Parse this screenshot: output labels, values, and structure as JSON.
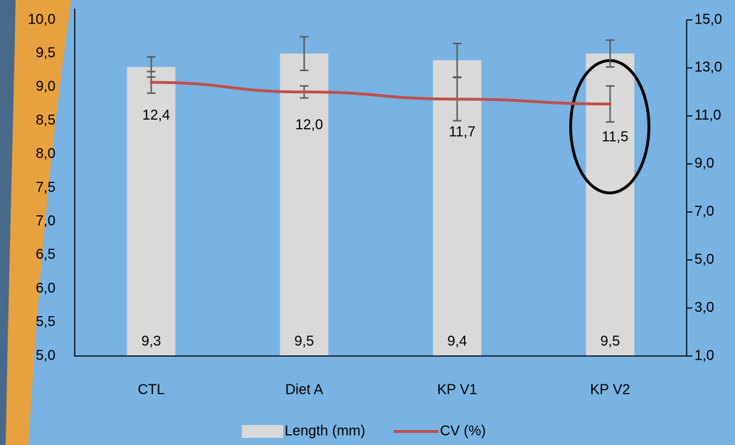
{
  "chart_data": {
    "type": "bar",
    "categories": [
      "CTL",
      "Diet A",
      "KP V1",
      "KP V2"
    ],
    "series": [
      {
        "name": "Length (mm)",
        "type": "bar",
        "color": "#d9d9d9",
        "values": [
          9.3,
          9.5,
          9.4,
          9.5
        ],
        "value_labels": [
          "9,3",
          "9,5",
          "9,4",
          "9,5"
        ],
        "errors": [
          0.15,
          0.25,
          0.25,
          0.2
        ]
      },
      {
        "name": "CV (%)",
        "type": "line",
        "axis": "y2",
        "color": "#c0504d",
        "values": [
          12.4,
          12.0,
          11.7,
          11.5
        ],
        "value_labels": [
          "12,4",
          "12,0",
          "11,7",
          "11,5"
        ],
        "errors": [
          0.45,
          0.25,
          0.9,
          0.75
        ]
      }
    ],
    "ylim": [
      5.0,
      10.0
    ],
    "yticks": [
      {
        "value": 5.0,
        "label": "5,0"
      },
      {
        "value": 5.5,
        "label": "5,5"
      },
      {
        "value": 6.0,
        "label": "6,0"
      },
      {
        "value": 6.5,
        "label": "6,5"
      },
      {
        "value": 7.0,
        "label": "7,0"
      },
      {
        "value": 7.5,
        "label": "7,5"
      },
      {
        "value": 8.0,
        "label": "8,0"
      },
      {
        "value": 8.5,
        "label": "8,5"
      },
      {
        "value": 9.0,
        "label": "9,0"
      },
      {
        "value": 9.5,
        "label": "9,5"
      },
      {
        "value": 10.0,
        "label": "10,0"
      }
    ],
    "y2lim": [
      1.0,
      15.0
    ],
    "y2ticks": [
      {
        "value": 1.0,
        "label": "1,0"
      },
      {
        "value": 3.0,
        "label": "3,0"
      },
      {
        "value": 5.0,
        "label": "5,0"
      },
      {
        "value": 7.0,
        "label": "7,0"
      },
      {
        "value": 9.0,
        "label": "9,0"
      },
      {
        "value": 11.0,
        "label": "11,0"
      },
      {
        "value": 13.0,
        "label": "13,0"
      },
      {
        "value": 15.0,
        "label": "15,0"
      }
    ],
    "legend": "bottom"
  }
}
